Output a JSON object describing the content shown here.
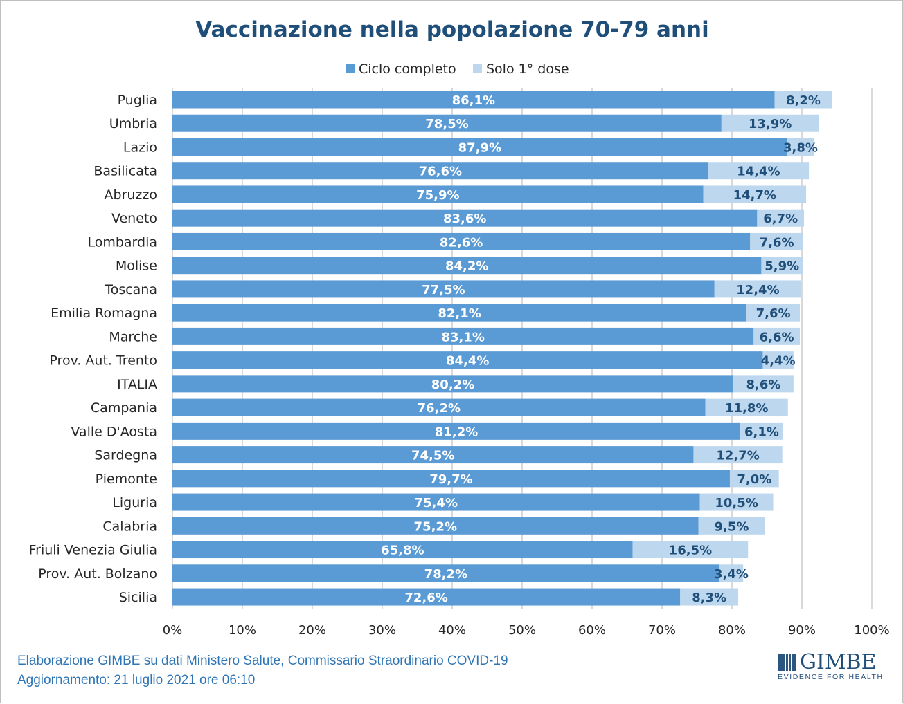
{
  "chart_data": {
    "type": "bar",
    "orientation": "horizontal",
    "stacked": true,
    "title": "Vaccinazione nella popolazione 70-79 anni",
    "categories": [
      "Puglia",
      "Umbria",
      "Lazio",
      "Basilicata",
      "Abruzzo",
      "Veneto",
      "Lombardia",
      "Molise",
      "Toscana",
      "Emilia Romagna",
      "Marche",
      "Prov. Aut. Trento",
      "ITALIA",
      "Campania",
      "Valle D'Aosta",
      "Sardegna",
      "Piemonte",
      "Liguria",
      "Calabria",
      "Friuli Venezia Giulia",
      "Prov. Aut. Bolzano",
      "Sicilia"
    ],
    "series": [
      {
        "name": "Ciclo completo",
        "color": "#5b9bd5",
        "values": [
          86.1,
          78.5,
          87.9,
          76.6,
          75.9,
          83.6,
          82.6,
          84.2,
          77.5,
          82.1,
          83.1,
          84.4,
          80.2,
          76.2,
          81.2,
          74.5,
          79.7,
          75.4,
          75.2,
          65.8,
          78.2,
          72.6
        ],
        "labels": [
          "86,1%",
          "78,5%",
          "87,9%",
          "76,6%",
          "75,9%",
          "83,6%",
          "82,6%",
          "84,2%",
          "77,5%",
          "82,1%",
          "83,1%",
          "84,4%",
          "80,2%",
          "76,2%",
          "81,2%",
          "74,5%",
          "79,7%",
          "75,4%",
          "75,2%",
          "65,8%",
          "78,2%",
          "72,6%"
        ]
      },
      {
        "name": "Solo 1° dose",
        "color": "#bdd7ee",
        "values": [
          8.2,
          13.9,
          3.8,
          14.4,
          14.7,
          6.7,
          7.6,
          5.9,
          12.4,
          7.6,
          6.6,
          4.4,
          8.6,
          11.8,
          6.1,
          12.7,
          7.0,
          10.5,
          9.5,
          16.5,
          3.4,
          8.3
        ],
        "labels": [
          "8,2%",
          "13,9%",
          "3,8%",
          "14,4%",
          "14,7%",
          "6,7%",
          "7,6%",
          "5,9%",
          "12,4%",
          "7,6%",
          "6,6%",
          "4,4%",
          "8,6%",
          "11,8%",
          "6,1%",
          "12,7%",
          "7,0%",
          "10,5%",
          "9,5%",
          "16,5%",
          "3,4%",
          "8,3%"
        ]
      }
    ],
    "xlim": [
      0,
      100
    ],
    "xticks": [
      0,
      10,
      20,
      30,
      40,
      50,
      60,
      70,
      80,
      90,
      100
    ],
    "xtick_labels": [
      "0%",
      "10%",
      "20%",
      "30%",
      "40%",
      "50%",
      "60%",
      "70%",
      "80%",
      "90%",
      "100%"
    ],
    "grid": true,
    "legend_position": "top"
  },
  "footer": {
    "source": "Elaborazione GIMBE su dati Ministero Salute, Commissario Straordinario COVID-19",
    "updated": "Aggiornamento: 21 luglio 2021 ore 06:10"
  },
  "logo": {
    "name": "GIMBE",
    "tagline": "EVIDENCE FOR HEALTH"
  }
}
